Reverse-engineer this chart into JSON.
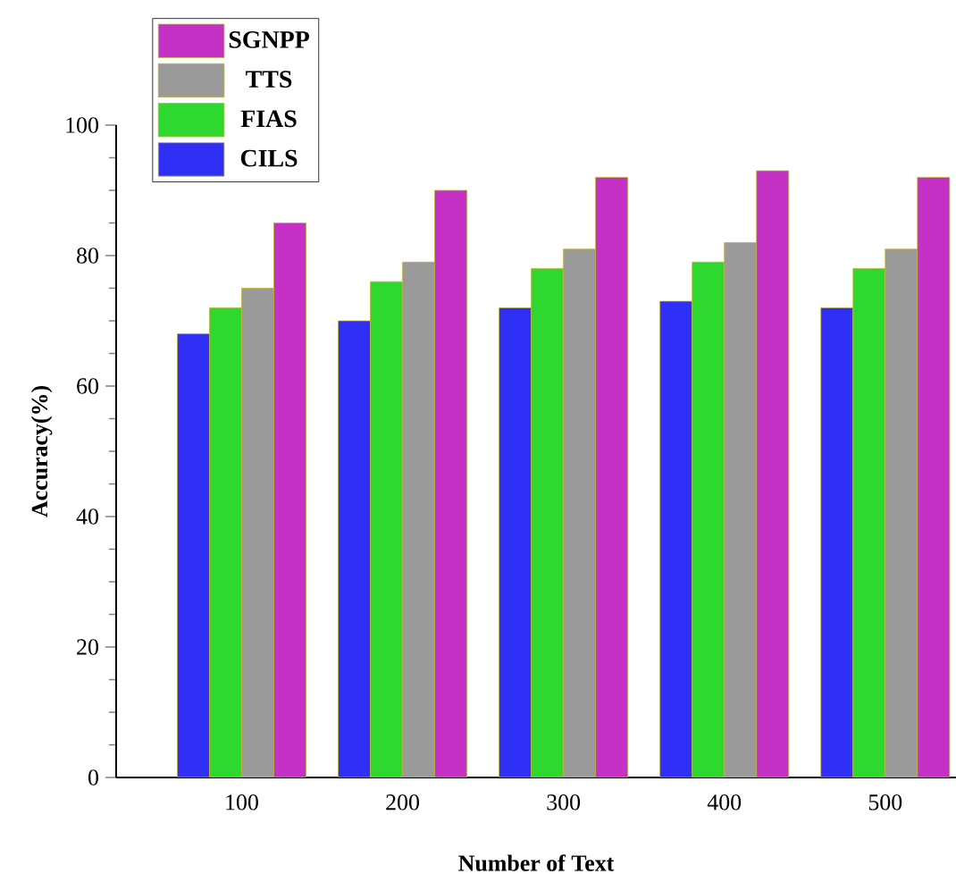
{
  "chart_data": {
    "type": "bar",
    "xlabel": "Number of Text",
    "ylabel": "Accuracy(%)",
    "categories": [
      "100",
      "200",
      "300",
      "400",
      "500"
    ],
    "series": [
      {
        "name": "CILS",
        "color": "#2f2ff5",
        "values": [
          68,
          70,
          72,
          73,
          72
        ]
      },
      {
        "name": "FIAS",
        "color": "#2fd82f",
        "values": [
          72,
          76,
          78,
          79,
          78
        ]
      },
      {
        "name": "TTS",
        "color": "#9a9a9a",
        "values": [
          75,
          79,
          81,
          82,
          81
        ]
      },
      {
        "name": "SGNPP",
        "color": "#c530c5",
        "values": [
          85,
          90,
          92,
          93,
          92
        ]
      }
    ],
    "ylim": [
      0,
      100
    ],
    "yticks": [
      0,
      20,
      40,
      60,
      80,
      100
    ],
    "legend": "top left",
    "grid": false
  }
}
